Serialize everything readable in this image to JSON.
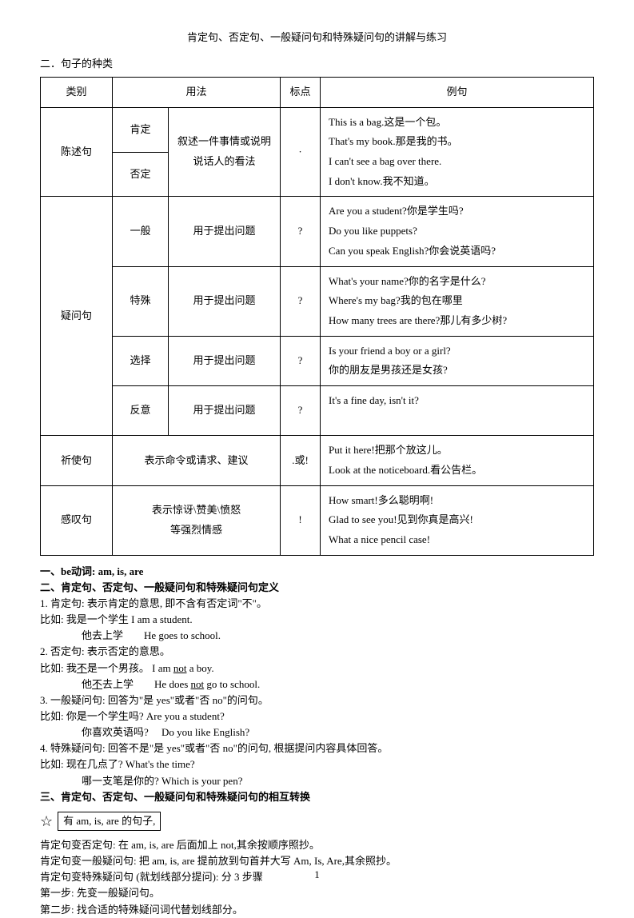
{
  "title": "肯定句、否定句、一般疑问句和特殊疑问句的讲解与练习",
  "sectionLabel": "二．句子的种类",
  "headers": {
    "category": "类别",
    "usage": "用法",
    "punct": "标点",
    "example": "例句"
  },
  "table": {
    "declarative": {
      "name": "陈述句",
      "affirm": "肯定",
      "negate": "否定",
      "usage": "叙述一件事情或说明说话人的看法",
      "punct": "·",
      "examples": "This is a bag.这是一个包。<br>That's my book.那是我的书。<br>I can't see a bag over there.<br>I don't know.我不知道。"
    },
    "interrogative": {
      "name": "疑问句",
      "general": {
        "sub": "一般",
        "usage": "用于提出问题",
        "punct": "?",
        "examples": "Are you a student?你是学生吗?<br>Do you like puppets?<br>Can you speak English?你会说英语吗?"
      },
      "special": {
        "sub": "特殊",
        "usage": "用于提出问题",
        "punct": "?",
        "examples": "What's your name?你的名字是什么?<br>Where's my bag?我的包在哪里<br>How many trees are there?那儿有多少树?"
      },
      "choice": {
        "sub": "选择",
        "usage": "用于提出问题",
        "punct": "?",
        "examples": "Is your friend a boy or a girl?<br>你的朋友是男孩还是女孩?"
      },
      "tag": {
        "sub": "反意",
        "usage": "用于提出问题",
        "punct": "?",
        "examples": "It's a fine day, isn't it?<br>&nbsp;"
      }
    },
    "imperative": {
      "name": "祈使句",
      "usage": "表示命令或请求、建议",
      "punct": ".或!",
      "examples": "Put it here!把那个放这儿。<br>Look at the noticeboard.看公告栏。"
    },
    "exclamatory": {
      "name": "感叹句",
      "usage": "表示惊讶\\赞美\\愤怒<br>等强烈情感",
      "punct": "!",
      "examples": "How smart!多么聪明啊!<br>Glad to see you!见到你真是高兴!<br>What a nice pencil case!"
    }
  },
  "body": {
    "h1": "一、be动词: am, is, are",
    "h2": "二、肯定句、否定句、一般疑问句和特殊疑问句定义",
    "p1": "1. 肯定句: 表示肯定的意思, 即不含有否定词\"不\"。",
    "p2a": "比如: 我是一个学生 I am a student.",
    "p2b": "他去上学　　He goes to school.",
    "p3": "2. 否定句: 表示否定的意思。",
    "p4a_pre": "比如: 我",
    "p4a_u": "不",
    "p4a_mid": "是一个男孩。 I am ",
    "p4a_u2": "not",
    "p4a_post": " a boy.",
    "p4b_pre": "他",
    "p4b_u": "不",
    "p4b_mid": "去上学　　He does ",
    "p4b_u2": "not",
    "p4b_post": " go to school.",
    "p5": "3. 一般疑问句: 回答为\"是 yes\"或者\"否 no\"的问句。",
    "p6a": "比如: 你是一个学生吗? Are you a student?",
    "p6b": "你喜欢英语吗?　 Do you like English?",
    "p7": "4. 特殊疑问句: 回答不是\"是 yes\"或者\"否 no\"的问句, 根据提问内容具体回答。",
    "p8a": "比如: 现在几点了? What's the time?",
    "p8b": "哪一支笔是你的? Which is your pen?",
    "h3": "三、肯定句、否定句、一般疑问句和特殊疑问句的相互转换",
    "boxed": "有 am, is, are 的句子,",
    "p9": "肯定句变否定句: 在 am, is, are 后面加上 not,其余按顺序照抄。",
    "p10": "肯定句变一般疑问句: 把 am, is, are 提前放到句首并大写 Am, Is, Are,其余照抄。",
    "p11": "肯定句变特殊疑问句 (就划线部分提问): 分 3 步骤",
    "p12": "第一步: 先变一般疑问句。",
    "p13": "第二步: 找合适的特殊疑问词代替划线部分。"
  },
  "pageNum": "1"
}
